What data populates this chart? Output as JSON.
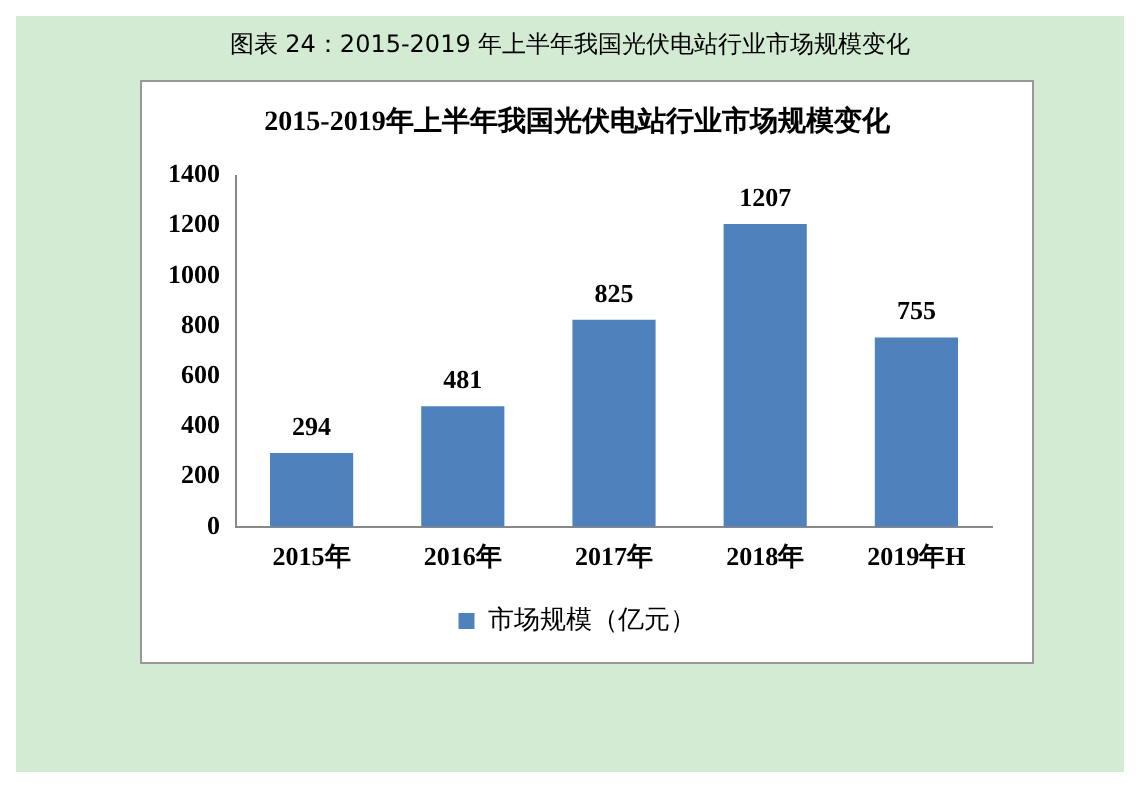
{
  "chart_data": {
    "type": "bar",
    "title": "图表 24：2015-2019 年上半年我国光伏电站行业市场规模变化",
    "subtitle": "2015-2019年上半年我国光伏电站行业市场规模变化",
    "categories": [
      "2015年",
      "2016年",
      "2017年",
      "2018年",
      "2019年H"
    ],
    "series": [
      {
        "name": "市场规模（亿元）",
        "color": "#4f81bd",
        "values": [
          294,
          481,
          825,
          1207,
          755
        ]
      }
    ],
    "ylim": [
      0,
      1400
    ],
    "yticks": [
      0,
      200,
      400,
      600,
      800,
      1000,
      1200,
      1400
    ],
    "grid": false,
    "legend": "bottom",
    "data_labels": true
  }
}
